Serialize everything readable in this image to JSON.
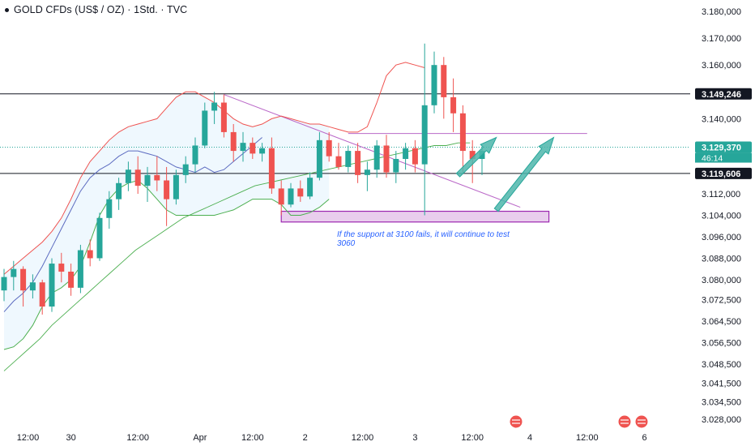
{
  "title": "GOLD CFDs (US$ / OZ) · 1Std. · TVC",
  "annotation": "If the support at 3100 fails, it will continue to test 3060",
  "chart_data": {
    "type": "candlestick",
    "y_range": [
      3024,
      3181
    ],
    "y_ticks": [
      "3.180,000",
      "3.170,000",
      "3.160,000",
      "3.149,246",
      "3.140,000",
      "3.129,370",
      "3.119,606",
      "3.112,000",
      "3.104,000",
      "3.096,000",
      "3.088,000",
      "3.080,000",
      "3.072,500",
      "3.064,500",
      "3.056,500",
      "3.048,500",
      "3.041,500",
      "3.034,500",
      "3.028,000"
    ],
    "y_tick_values": [
      3180,
      3170,
      3160,
      3149.246,
      3140,
      3129.37,
      3119.606,
      3112,
      3104,
      3096,
      3088,
      3080,
      3072.5,
      3064.5,
      3056.5,
      3048.5,
      3041.5,
      3034.5,
      3028
    ],
    "x_ticks": [
      "12:00",
      "30",
      "12:00",
      "Apr",
      "12:00",
      "2",
      "12:00",
      "3",
      "12:00",
      "4",
      "12:00",
      "6"
    ],
    "x_tick_index": [
      2.5,
      7,
      14,
      20.5,
      26,
      31.5,
      37.5,
      43,
      49,
      55,
      61,
      67
    ],
    "price_labels": [
      {
        "text": "3.149,246",
        "value": 3149.246,
        "color": "#131722"
      },
      {
        "text": "3.129,370",
        "value": 3129.37,
        "color": "#26a69a"
      },
      {
        "text": "3.119,606",
        "value": 3119.606,
        "color": "#131722"
      }
    ],
    "countdown": "46:14",
    "horizontal_lines": [
      3149.246,
      3119.606
    ],
    "resistance_line": {
      "from_index": 36,
      "to_index": 61,
      "value": 3134.5
    },
    "support_zone": {
      "from_index": 29,
      "to_index": 57,
      "low": 3101.5,
      "high": 3105.5
    },
    "descending_line": {
      "from": [
        23,
        3149
      ],
      "to": [
        54,
        3107
      ]
    },
    "arrows": [
      {
        "from": [
          47.5,
          3119
        ],
        "to": [
          51.5,
          3133
        ]
      },
      {
        "from": [
          51.5,
          3106
        ],
        "to": [
          57.5,
          3133
        ]
      }
    ],
    "candles": [
      [
        3076,
        3084,
        3072,
        3081
      ],
      [
        3081,
        3087,
        3076,
        3084
      ],
      [
        3084,
        3085,
        3070,
        3076
      ],
      [
        3076,
        3082,
        3073,
        3079
      ],
      [
        3079,
        3080,
        3067,
        3070
      ],
      [
        3070,
        3088,
        3068,
        3086
      ],
      [
        3086,
        3090,
        3079,
        3083
      ],
      [
        3083,
        3086,
        3074,
        3077
      ],
      [
        3077,
        3093,
        3075,
        3091
      ],
      [
        3091,
        3095,
        3085,
        3088
      ],
      [
        3088,
        3105,
        3087,
        3103
      ],
      [
        3103,
        3113,
        3099,
        3110
      ],
      [
        3110,
        3118,
        3106,
        3116
      ],
      [
        3116,
        3124,
        3113,
        3121
      ],
      [
        3121,
        3126,
        3112,
        3115
      ],
      [
        3115,
        3122,
        3109,
        3119
      ],
      [
        3119,
        3126,
        3113,
        3117
      ],
      [
        3117,
        3122,
        3100,
        3110
      ],
      [
        3110,
        3121,
        3108,
        3119
      ],
      [
        3119,
        3126,
        3116,
        3123
      ],
      [
        3123,
        3133,
        3120,
        3130
      ],
      [
        3130,
        3146,
        3129,
        3143
      ],
      [
        3143,
        3150,
        3138,
        3146
      ],
      [
        3146,
        3149,
        3133,
        3135
      ],
      [
        3135,
        3138,
        3124,
        3128
      ],
      [
        3128,
        3135,
        3124,
        3131
      ],
      [
        3131,
        3133,
        3125,
        3127
      ],
      [
        3127,
        3131,
        3124,
        3129
      ],
      [
        3129,
        3133,
        3112,
        3114
      ],
      [
        3114,
        3117,
        3104,
        3108
      ],
      [
        3108,
        3116,
        3107,
        3114
      ],
      [
        3114,
        3117,
        3109,
        3111
      ],
      [
        3111,
        3120,
        3110,
        3118
      ],
      [
        3118,
        3135,
        3117,
        3132
      ],
      [
        3132,
        3135,
        3124,
        3126
      ],
      [
        3126,
        3131,
        3121,
        3122
      ],
      [
        3122,
        3130,
        3120,
        3128
      ],
      [
        3128,
        3131,
        3116,
        3119
      ],
      [
        3119,
        3124,
        3113,
        3121
      ],
      [
        3121,
        3132,
        3118,
        3130
      ],
      [
        3130,
        3134,
        3118,
        3120
      ],
      [
        3120,
        3128,
        3116,
        3125
      ],
      [
        3125,
        3131,
        3121,
        3129
      ],
      [
        3129,
        3132,
        3120,
        3123
      ],
      [
        3123,
        3168,
        3104,
        3145
      ],
      [
        3145,
        3165,
        3142,
        3160
      ],
      [
        3160,
        3163,
        3140,
        3148
      ],
      [
        3148,
        3155,
        3135,
        3142
      ],
      [
        3142,
        3145,
        3120,
        3128
      ],
      [
        3128,
        3132,
        3116,
        3125
      ],
      [
        3125,
        3129,
        3119,
        3128
      ]
    ],
    "series": [
      {
        "color": "#ef5350",
        "values": [
          3082,
          3085,
          3088,
          3091,
          3094,
          3098,
          3103,
          3110,
          3118,
          3124,
          3128,
          3132,
          3135,
          3137,
          3138,
          3139,
          3140,
          3144,
          3148,
          3150,
          3150,
          3148,
          3146,
          3143,
          3140,
          3138,
          3137,
          3138,
          3140,
          3141,
          3140,
          3139,
          3138,
          3138,
          3137,
          3136,
          3135,
          3135,
          3137,
          3146,
          3156,
          3160,
          3161,
          3160,
          3159
        ]
      },
      {
        "color": "#4caf50",
        "values": [
          3054,
          3055,
          3058,
          3063,
          3070,
          3075,
          3077,
          3080,
          3085,
          3094,
          3104,
          3110,
          3114,
          3116,
          3117,
          3114,
          3110,
          3106,
          3104,
          3104,
          3104,
          3104,
          3104,
          3105,
          3106,
          3108,
          3110,
          3110,
          3110,
          3108,
          3104,
          3104,
          3105,
          3107,
          3110
        ]
      },
      {
        "color": "#5c6bc0",
        "values": [
          3068,
          3072,
          3075,
          3079,
          3085,
          3092,
          3099,
          3106,
          3113,
          3118,
          3121,
          3123,
          3126,
          3128,
          3128,
          3127,
          3126,
          3124,
          3122,
          3121,
          3120,
          3122,
          3120,
          3121,
          3124,
          3127,
          3130,
          3133
        ]
      }
    ]
  }
}
